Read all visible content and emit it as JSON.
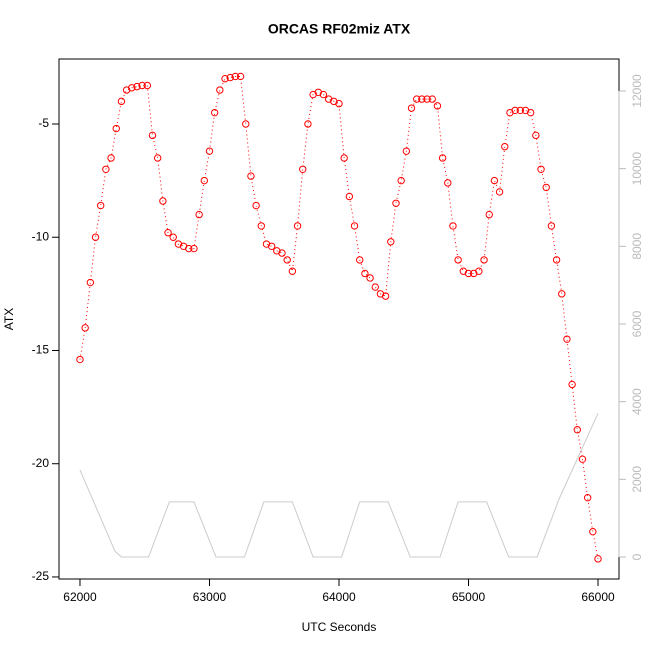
{
  "chart_data": {
    "type": "scatter",
    "title": "ORCAS RF02miz ATX",
    "x_label": "UTC Seconds",
    "y_label": "ATX",
    "xlim": [
      61838,
      66162
    ],
    "xticks": [
      62000,
      63000,
      64000,
      65000,
      66000
    ],
    "ylim": [
      -25.09,
      -2.13
    ],
    "yticks": [
      -25,
      -20,
      -15,
      -10,
      -5
    ],
    "y2lim": [
      -567,
      12824
    ],
    "y2ticks": [
      0,
      2000,
      4000,
      6000,
      8000,
      10000,
      12000
    ],
    "series": [
      {
        "color": "#ff0000",
        "marker": "circle",
        "line_style": "dotted",
        "x": [
          62000,
          62040,
          62080,
          62120,
          62160,
          62200,
          62240,
          62280,
          62320,
          62360,
          62400,
          62440,
          62480,
          62520,
          62560,
          62600,
          62640,
          62680,
          62720,
          62760,
          62800,
          62840,
          62880,
          62920,
          62960,
          63000,
          63040,
          63080,
          63120,
          63160,
          63200,
          63240,
          63280,
          63320,
          63360,
          63400,
          63440,
          63480,
          63520,
          63560,
          63600,
          63640,
          63680,
          63720,
          63760,
          63800,
          63840,
          63880,
          63920,
          63960,
          64000,
          64040,
          64080,
          64120,
          64160,
          64200,
          64240,
          64280,
          64320,
          64360,
          64400,
          64440,
          64480,
          64520,
          64560,
          64600,
          64640,
          64680,
          64720,
          64760,
          64800,
          64840,
          64880,
          64920,
          64960,
          65000,
          65040,
          65080,
          65120,
          65160,
          65200,
          65240,
          65280,
          65320,
          65360,
          65400,
          65440,
          65480,
          65520,
          65560,
          65600,
          65640,
          65680,
          65720,
          65760,
          65800,
          65840,
          65880,
          65920,
          65960,
          66000
        ],
        "values": [
          -15.4,
          -14.0,
          -12.0,
          -10.0,
          -8.6,
          -7.0,
          -6.5,
          -5.2,
          -4.0,
          -3.5,
          -3.4,
          -3.35,
          -3.3,
          -3.3,
          -5.5,
          -6.5,
          -8.4,
          -9.8,
          -10.0,
          -10.3,
          -10.4,
          -10.5,
          -10.5,
          -9.0,
          -7.5,
          -6.2,
          -4.5,
          -3.5,
          -3.0,
          -2.95,
          -2.9,
          -2.9,
          -5.0,
          -7.3,
          -8.6,
          -9.5,
          -10.3,
          -10.4,
          -10.6,
          -10.7,
          -11.0,
          -11.5,
          -9.5,
          -7.0,
          -5.0,
          -3.7,
          -3.6,
          -3.7,
          -3.9,
          -4.0,
          -4.1,
          -6.5,
          -8.2,
          -9.5,
          -11.0,
          -11.6,
          -11.8,
          -12.2,
          -12.5,
          -12.6,
          -10.2,
          -8.5,
          -7.5,
          -6.2,
          -4.3,
          -3.9,
          -3.9,
          -3.9,
          -3.9,
          -4.2,
          -6.5,
          -7.6,
          -9.5,
          -11.0,
          -11.5,
          -11.6,
          -11.6,
          -11.5,
          -11.0,
          -9.0,
          -7.5,
          -8.0,
          -6.0,
          -4.5,
          -4.4,
          -4.4,
          -4.4,
          -4.5,
          -5.5,
          -7.0,
          -7.8,
          -9.5,
          -11.0,
          -12.5,
          -14.5,
          -16.5,
          -18.5,
          -19.8,
          -21.5,
          -23.0,
          -24.2
        ]
      },
      {
        "color": "#cccccc",
        "marker": "none",
        "line_style": "solid",
        "axis": "y2",
        "x": [
          62000,
          62270,
          62320,
          62530,
          62690,
          62880,
          63050,
          63270,
          63420,
          63640,
          63800,
          64020,
          64160,
          64380,
          64550,
          64780,
          64920,
          65140,
          65310,
          65530,
          65700,
          65850,
          66000
        ],
        "values": [
          2240,
          150,
          0,
          0,
          1420,
          1420,
          0,
          0,
          1420,
          1420,
          0,
          0,
          1420,
          1420,
          0,
          0,
          1420,
          1420,
          0,
          0,
          1500,
          2600,
          3700
        ]
      }
    ]
  }
}
